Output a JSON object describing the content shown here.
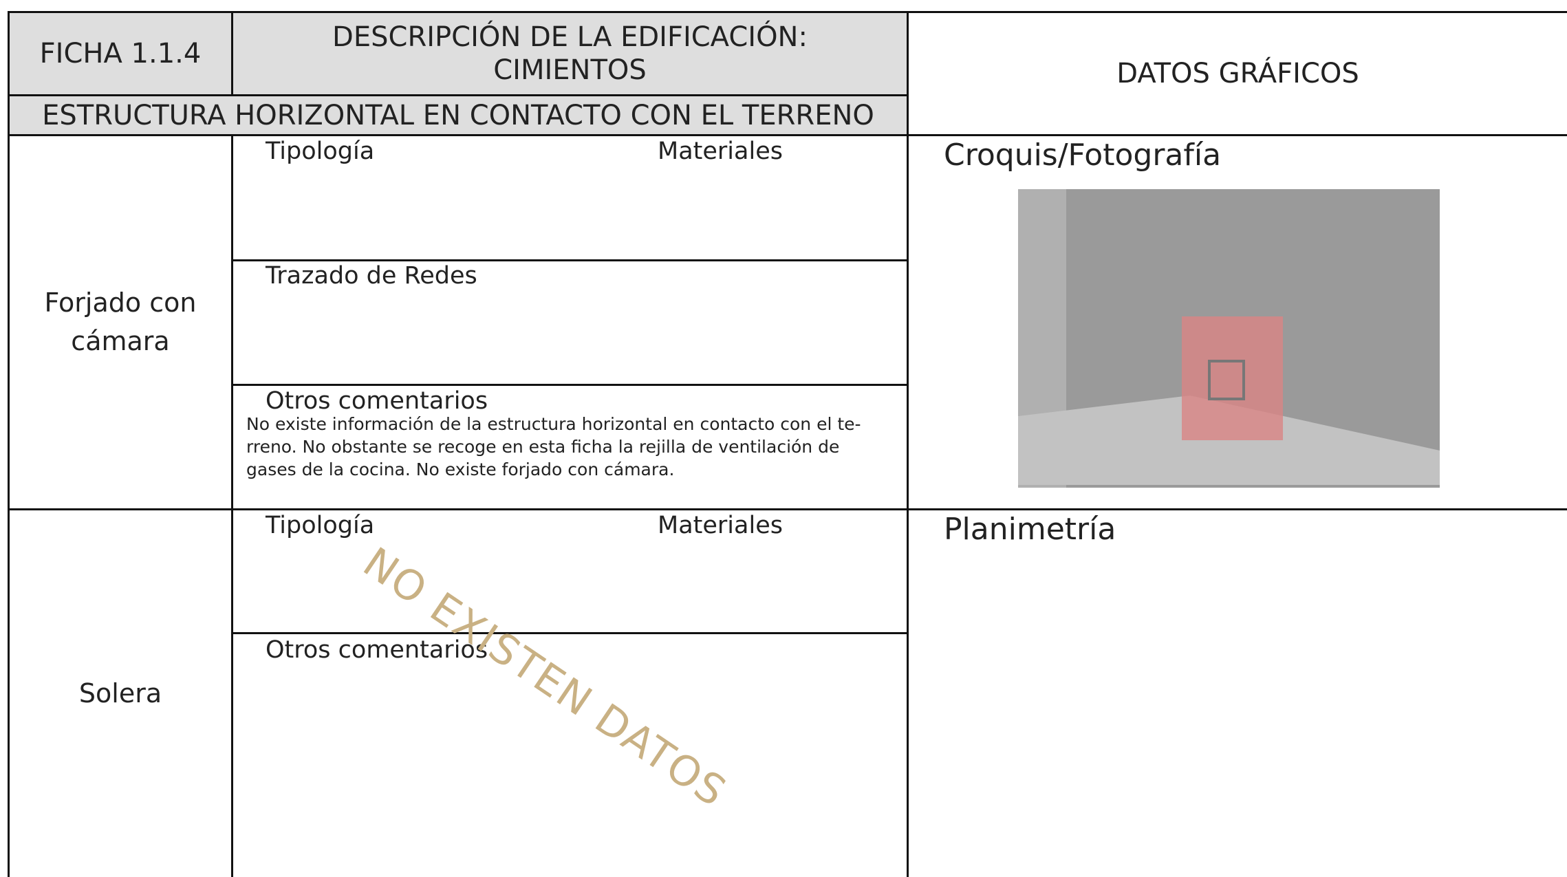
{
  "header": {
    "ficha": "FICHA 1.1.4",
    "title_lines": [
      "DESCRIPCIÓN DE LA EDIFICACIÓN:",
      "CIMIENTOS"
    ],
    "subtitle": "ESTRUCTURA HORIZONTAL EN CONTACTO CON EL TERRENO",
    "graphic": "DATOS GRÁFICOS"
  },
  "sections": [
    {
      "label_lines": [
        "Forjado con",
        "cámara"
      ],
      "typology": "Tipología",
      "materials": "Materiales",
      "networks": "Trazado de Redes",
      "comments": "Otros comentarios",
      "comment_lines": [
        "No existe información de la estructura horizontal en contacto con el te-",
        "rreno. No obstante se recoge en esta ficha la rejilla de ventilación de",
        "gases de la cocina. No existe forjado con cámara."
      ],
      "graphic": "Croquis/Fotografía"
    },
    {
      "label_lines": [
        "Solera"
      ],
      "typology": "Tipología",
      "materials": "Materiales",
      "comments": "Otros comentarios",
      "graphic": "Planimetría",
      "watermark": "NO EXISTEN DATOS"
    }
  ]
}
